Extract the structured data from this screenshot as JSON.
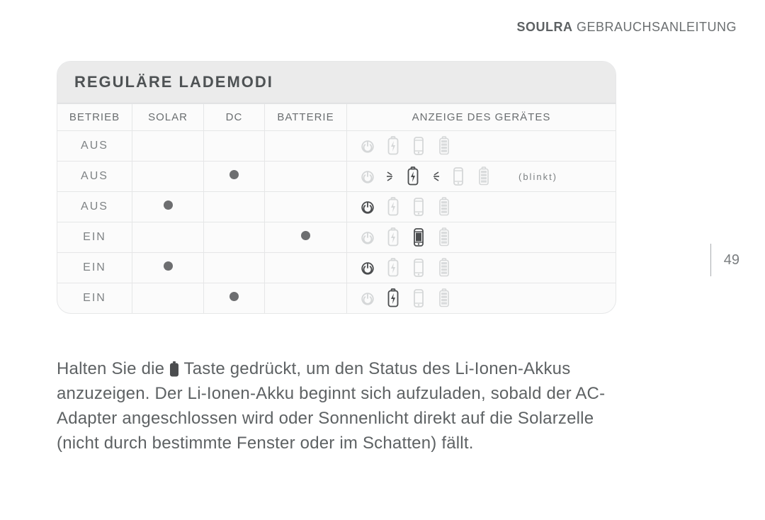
{
  "header": {
    "brand": "SOULRA",
    "tag": "GEBRAUCHSANLEITUNG"
  },
  "page_number": "49",
  "panel": {
    "title": "REGULÄRE LADEMODI",
    "columns": {
      "operation": "BETRIEB",
      "solar": "SOLAR",
      "dc": "DC",
      "battery": "BATTERIE",
      "display": "ANZEIGE DES GERÄTES"
    }
  },
  "labels": {
    "off": "AUS",
    "on": "EIN",
    "blinkt": "(blinkt)"
  },
  "colors": {
    "active_stroke": "#4b4d4f",
    "inactive_stroke": "#d5d7d8",
    "fill_dark": "#4b4d4f",
    "bg": "#ffffff",
    "panel_bg": "#fbfbfb",
    "panel_title_bg": "#ebebeb",
    "dot": "#6d6e70",
    "border": "#e5e6e7",
    "text": "#5e6264"
  },
  "rows": [
    {
      "operation_key": "off",
      "solar": false,
      "dc": false,
      "battery": false,
      "icons": {
        "power": "off",
        "charge": "off",
        "phone": "off",
        "battery": "off",
        "spark": false
      },
      "note": null
    },
    {
      "operation_key": "off",
      "solar": false,
      "dc": true,
      "battery": false,
      "icons": {
        "power": "off",
        "charge": "on",
        "phone": "off",
        "battery": "off",
        "spark": true
      },
      "note": "blinkt"
    },
    {
      "operation_key": "off",
      "solar": true,
      "dc": false,
      "battery": false,
      "icons": {
        "power": "on",
        "charge": "off",
        "phone": "off",
        "battery": "off",
        "spark": false
      },
      "note": null
    },
    {
      "operation_key": "on",
      "solar": false,
      "dc": false,
      "battery": true,
      "icons": {
        "power": "off",
        "charge": "off",
        "phone": "on",
        "battery": "off",
        "spark": false
      },
      "note": null
    },
    {
      "operation_key": "on",
      "solar": true,
      "dc": false,
      "battery": false,
      "icons": {
        "power": "on",
        "charge": "off",
        "phone": "off",
        "battery": "off",
        "spark": false
      },
      "note": null
    },
    {
      "operation_key": "on",
      "solar": false,
      "dc": true,
      "battery": false,
      "icons": {
        "power": "off",
        "charge": "on",
        "phone": "off",
        "battery": "off",
        "spark": false
      },
      "note": null
    }
  ],
  "body_parts": {
    "a": "Halten Sie die ",
    "b": " Taste gedrückt, um den Status des Li-Ionen-Akkus anzuzeigen. Der Li-Ionen-Akku beginnt sich aufzuladen, sobald der AC-Adapter angeschlossen wird oder Sonnenlicht direkt auf die Solarzelle (nicht durch bestimmte Fenster oder im Schatten) fällt."
  }
}
